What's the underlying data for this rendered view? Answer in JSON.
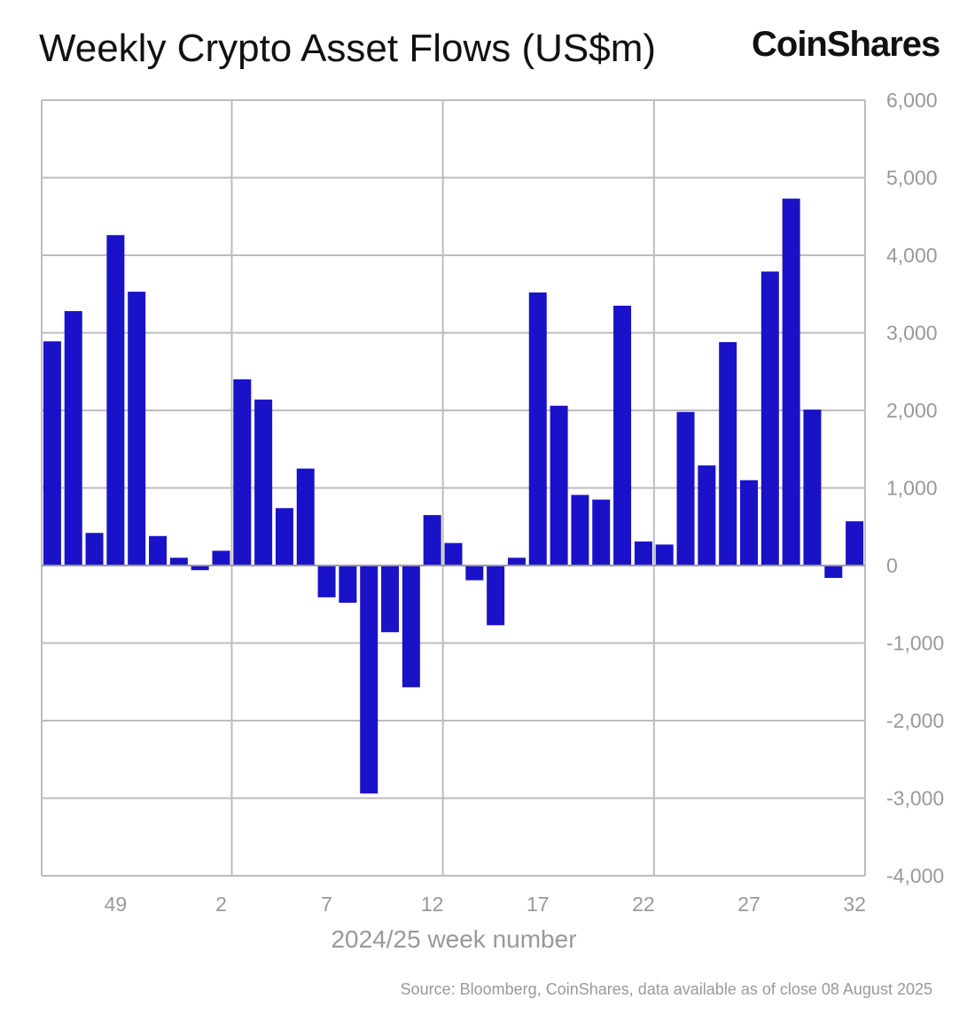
{
  "title": "Weekly Crypto Asset Flows (US$m)",
  "logo": "CoinShares",
  "source": "Source: Bloomberg, CoinShares, data available as of close 08 August 2025",
  "colors": {
    "bar": "#1a12c8",
    "grid": "#bdbdbd",
    "axis_text": "#999999"
  },
  "chart_data": {
    "type": "bar",
    "title": "Weekly Crypto Asset Flows (US$m)",
    "xlabel": "2024/25 week number",
    "ylabel": "",
    "ylim": [
      -4000,
      6000
    ],
    "yticks": [
      6000,
      5000,
      4000,
      3000,
      2000,
      1000,
      0,
      -1000,
      -2000,
      -3000,
      -4000
    ],
    "ytick_labels": [
      "6,000",
      "5,000",
      "4,000",
      "3,000",
      "2,000",
      "1,000",
      "0",
      "-1,000",
      "-2,000",
      "-3,000",
      "-4,000"
    ],
    "xtick_labels": [
      "49",
      "2",
      "7",
      "12",
      "17",
      "22",
      "27",
      "32"
    ],
    "y_axis_side": "right",
    "grid": true,
    "categories": [
      "46",
      "47",
      "48",
      "49",
      "50",
      "51",
      "52",
      "1",
      "2",
      "3",
      "4",
      "5",
      "6",
      "7",
      "8",
      "9",
      "10",
      "11",
      "12",
      "13",
      "14",
      "15",
      "16",
      "17",
      "18",
      "19",
      "20",
      "21",
      "22",
      "23",
      "24",
      "25",
      "26",
      "27",
      "28",
      "29",
      "30",
      "31",
      "32"
    ],
    "values": [
      2890,
      3280,
      420,
      4260,
      3530,
      380,
      100,
      -60,
      190,
      2400,
      2140,
      740,
      1250,
      -410,
      -480,
      -2940,
      -860,
      -1570,
      650,
      290,
      -190,
      -770,
      100,
      3520,
      2060,
      910,
      850,
      3350,
      310,
      270,
      1980,
      1290,
      2880,
      1100,
      3790,
      4730,
      2010,
      -160,
      570
    ]
  }
}
